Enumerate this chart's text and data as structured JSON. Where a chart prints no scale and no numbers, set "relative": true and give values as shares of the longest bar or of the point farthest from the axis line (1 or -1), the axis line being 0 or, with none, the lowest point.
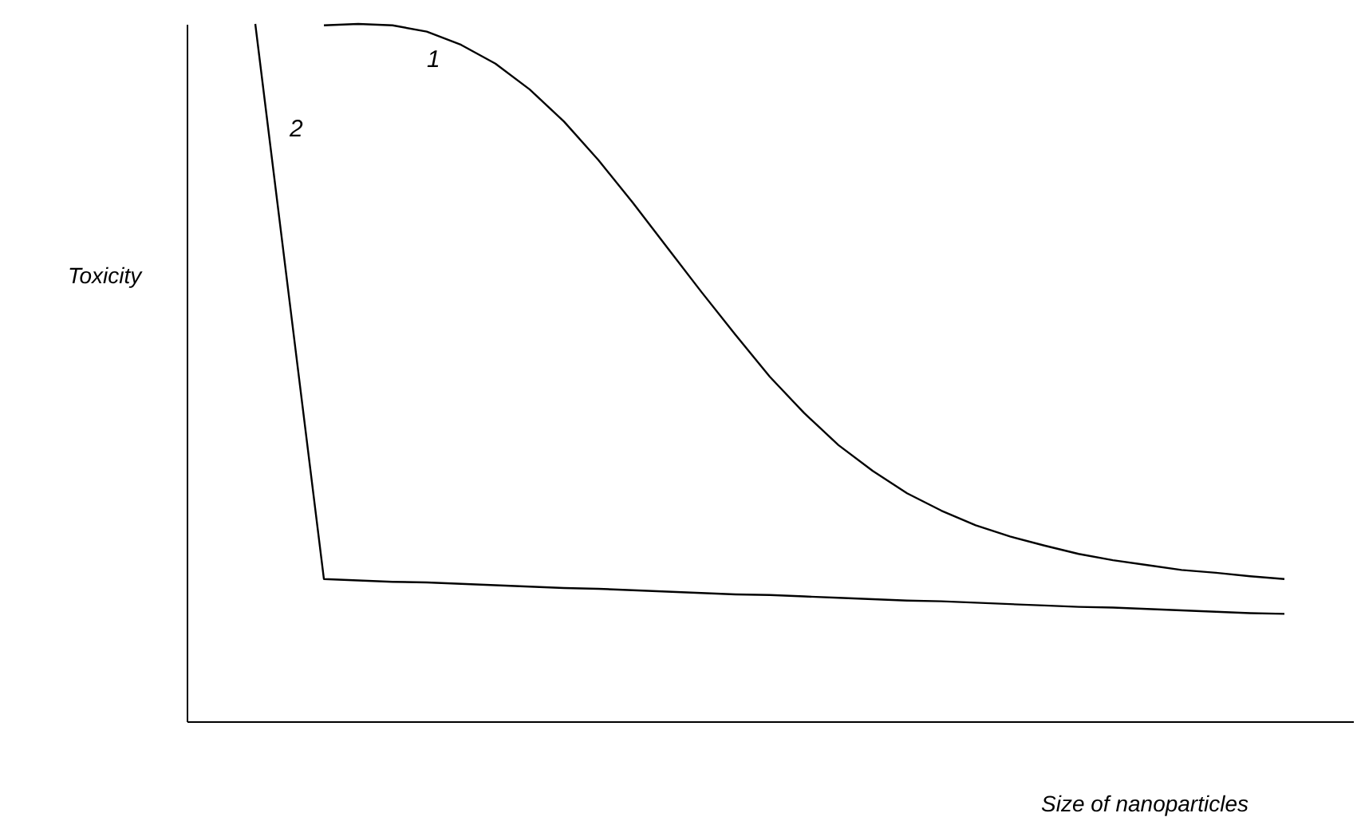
{
  "chart_data": {
    "type": "line",
    "relative": true,
    "xlabel": "Size of nanoparticles",
    "ylabel": "Toxicity",
    "categories": [
      null,
      null,
      null,
      null,
      null,
      null,
      null,
      null,
      null,
      null,
      null,
      null,
      null,
      null,
      null,
      null,
      null,
      null,
      null,
      null,
      null,
      null,
      null,
      null,
      null,
      null,
      null,
      null,
      null,
      null,
      null,
      null,
      null,
      null,
      null
    ],
    "series": [
      {
        "name": "1",
        "color": "#000000",
        "values": [
          null,
          null,
          null,
          null,
          0.998,
          1.0,
          0.998,
          0.989,
          0.97,
          0.943,
          0.906,
          0.86,
          0.805,
          0.744,
          0.68,
          0.616,
          0.554,
          0.494,
          0.442,
          0.396,
          0.359,
          0.327,
          0.302,
          0.281,
          0.265,
          0.252,
          0.24,
          0.231,
          0.224,
          0.217,
          0.213,
          0.208,
          0.204,
          null,
          null
        ]
      },
      {
        "name": "2",
        "color": "#000000",
        "values": [
          null,
          null,
          1.0,
          0.602,
          0.204,
          0.202,
          0.2,
          0.199,
          0.197,
          0.195,
          0.193,
          0.191,
          0.19,
          0.188,
          0.186,
          0.184,
          0.182,
          0.181,
          0.179,
          0.177,
          0.175,
          0.173,
          0.172,
          0.17,
          0.168,
          0.166,
          0.164,
          0.163,
          0.161,
          0.159,
          0.157,
          0.155,
          0.154,
          null,
          null
        ]
      }
    ],
    "grid": false,
    "marker": "none",
    "line_style": "solid"
  }
}
